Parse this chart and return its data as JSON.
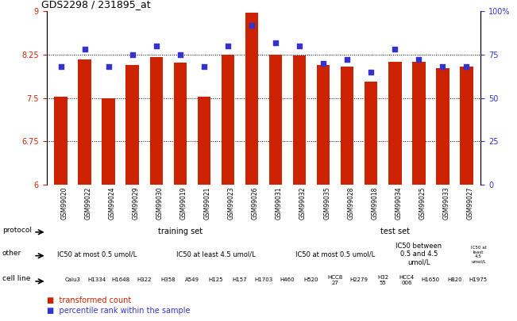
{
  "title": "GDS2298 / 231895_at",
  "samples": [
    "GSM99020",
    "GSM99022",
    "GSM99024",
    "GSM99029",
    "GSM99030",
    "GSM99019",
    "GSM99021",
    "GSM99023",
    "GSM99026",
    "GSM99031",
    "GSM99032",
    "GSM99035",
    "GSM99028",
    "GSM99018",
    "GSM99034",
    "GSM99025",
    "GSM99033",
    "GSM99027"
  ],
  "bar_values": [
    7.52,
    8.17,
    7.5,
    8.07,
    8.2,
    8.11,
    7.52,
    8.25,
    8.97,
    8.25,
    8.23,
    8.07,
    8.04,
    7.78,
    8.13,
    8.12,
    8.02,
    8.04
  ],
  "dot_values": [
    68,
    78,
    68,
    75,
    80,
    75,
    68,
    80,
    92,
    82,
    80,
    70,
    72,
    65,
    78,
    72,
    68,
    68
  ],
  "ylim_left": [
    6,
    9
  ],
  "ylim_right": [
    0,
    100
  ],
  "yticks_left": [
    6,
    6.75,
    7.5,
    8.25,
    9
  ],
  "yticks_right": [
    0,
    25,
    50,
    75,
    100
  ],
  "ytick_right_labels": [
    "0",
    "25",
    "50",
    "75",
    "100%"
  ],
  "bar_color": "#cc2200",
  "dot_color": "#3333cc",
  "protocol_row": {
    "label": "protocol",
    "groups": [
      {
        "text": "training set",
        "start": 0,
        "end": 10,
        "color": "#aaddaa"
      },
      {
        "text": "test set",
        "start": 10,
        "end": 18,
        "color": "#44cc44"
      }
    ]
  },
  "other_row": {
    "label": "other",
    "groups": [
      {
        "text": "IC50 at most 0.5 umol/L",
        "start": 0,
        "end": 3,
        "color": "#ccbbff"
      },
      {
        "text": "IC50 at least 4.5 umol/L",
        "start": 3,
        "end": 10,
        "color": "#8877ee"
      },
      {
        "text": "IC50 at most 0.5 umol/L",
        "start": 10,
        "end": 13,
        "color": "#ccbbff"
      },
      {
        "text": "IC50 between\n0.5 and 4.5\numol/L",
        "start": 13,
        "end": 17,
        "color": "#aaaaee"
      },
      {
        "text": "IC50 at\nleast\n4.5\numol/L",
        "start": 17,
        "end": 18,
        "color": "#8877ee"
      }
    ]
  },
  "cell_line_row": {
    "label": "cell line",
    "cells": [
      {
        "text": "Calu3",
        "start": 0,
        "end": 1,
        "color": "#ffdddd"
      },
      {
        "text": "H1334",
        "start": 1,
        "end": 2,
        "color": "#ffdddd"
      },
      {
        "text": "H1648",
        "start": 2,
        "end": 3,
        "color": "#ffdddd"
      },
      {
        "text": "H322",
        "start": 3,
        "end": 4,
        "color": "#ffaaaa"
      },
      {
        "text": "H358",
        "start": 4,
        "end": 5,
        "color": "#ffaaaa"
      },
      {
        "text": "A549",
        "start": 5,
        "end": 6,
        "color": "#ffdddd"
      },
      {
        "text": "H125",
        "start": 6,
        "end": 7,
        "color": "#ffdddd"
      },
      {
        "text": "H157",
        "start": 7,
        "end": 8,
        "color": "#ffdddd"
      },
      {
        "text": "H1703",
        "start": 8,
        "end": 9,
        "color": "#ffdddd"
      },
      {
        "text": "H460",
        "start": 9,
        "end": 10,
        "color": "#ffaaaa"
      },
      {
        "text": "H520",
        "start": 10,
        "end": 11,
        "color": "#ffaaaa"
      },
      {
        "text": "HCC8\n27",
        "start": 11,
        "end": 12,
        "color": "#ffffff"
      },
      {
        "text": "H2279",
        "start": 12,
        "end": 13,
        "color": "#ffdddd"
      },
      {
        "text": "H32\n55",
        "start": 13,
        "end": 14,
        "color": "#ffaaaa"
      },
      {
        "text": "HCC4\n006",
        "start": 14,
        "end": 15,
        "color": "#ffaaaa"
      },
      {
        "text": "H1650",
        "start": 15,
        "end": 16,
        "color": "#ffdddd"
      },
      {
        "text": "H820",
        "start": 16,
        "end": 17,
        "color": "#ffaaaa"
      },
      {
        "text": "H1975",
        "start": 17,
        "end": 18,
        "color": "#ff7777"
      }
    ]
  }
}
